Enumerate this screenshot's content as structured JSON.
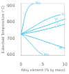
{
  "chart_data": {
    "type": "line",
    "xlabel": "Alloy element (% by mass)",
    "ylabel": "Eutectoid Temperature (°C)",
    "xlim": [
      0,
      10
    ],
    "xticks": [
      0,
      5,
      10
    ],
    "ylim": [
      595,
      915
    ],
    "yticks": [
      600,
      700,
      800,
      900
    ],
    "grid": false,
    "series": [
      {
        "name": "Mo",
        "color": "#55ccee",
        "x": [
          0,
          0.3,
          0.6,
          1.0,
          1.5,
          2.0,
          2.5,
          3.0
        ],
        "values": [
          727,
          760,
          800,
          850,
          880,
          900,
          910,
          915
        ]
      },
      {
        "name": "Si",
        "color": "#55ccee",
        "x": [
          0,
          1,
          2,
          3,
          4,
          5,
          6,
          7,
          8,
          9
        ],
        "values": [
          727,
          742,
          758,
          774,
          790,
          806,
          818,
          829,
          838,
          845
        ]
      },
      {
        "name": "W",
        "color": "#55ccee",
        "x": [
          0,
          1,
          2,
          3,
          4,
          5,
          6,
          8,
          10
        ],
        "values": [
          727,
          736,
          745,
          754,
          763,
          772,
          781,
          800,
          818
        ]
      },
      {
        "name": "Cr",
        "color": "#55ccee",
        "x": [
          0,
          1,
          2,
          3,
          4,
          5,
          6,
          8,
          10
        ],
        "values": [
          727,
          731,
          735,
          740,
          746,
          752,
          758,
          772,
          787
        ]
      },
      {
        "name": "Mn",
        "color": "#55ccee",
        "x": [
          0,
          0.5,
          1,
          1.5,
          2,
          2.5,
          3,
          4,
          5
        ],
        "values": [
          727,
          717,
          705,
          692,
          677,
          661,
          645,
          618,
          600
        ]
      },
      {
        "name": "Ni",
        "color": "#55ccee",
        "x": [
          0,
          1,
          2,
          3,
          4,
          5,
          6,
          7,
          8,
          9,
          10
        ],
        "values": [
          727,
          720,
          712,
          704,
          695,
          686,
          677,
          668,
          659,
          650,
          641
        ]
      }
    ],
    "annotations": [
      {
        "text": "Mo",
        "x": 3.1,
        "y": 915
      },
      {
        "text": "Si",
        "x": 9.1,
        "y": 845
      },
      {
        "text": "W",
        "x": 7.5,
        "y": 818
      },
      {
        "text": "Cr",
        "x": 8.0,
        "y": 787
      },
      {
        "text": "Mn",
        "x": 5.1,
        "y": 600
      },
      {
        "text": "Ni",
        "x": 8.5,
        "y": 641
      }
    ]
  }
}
